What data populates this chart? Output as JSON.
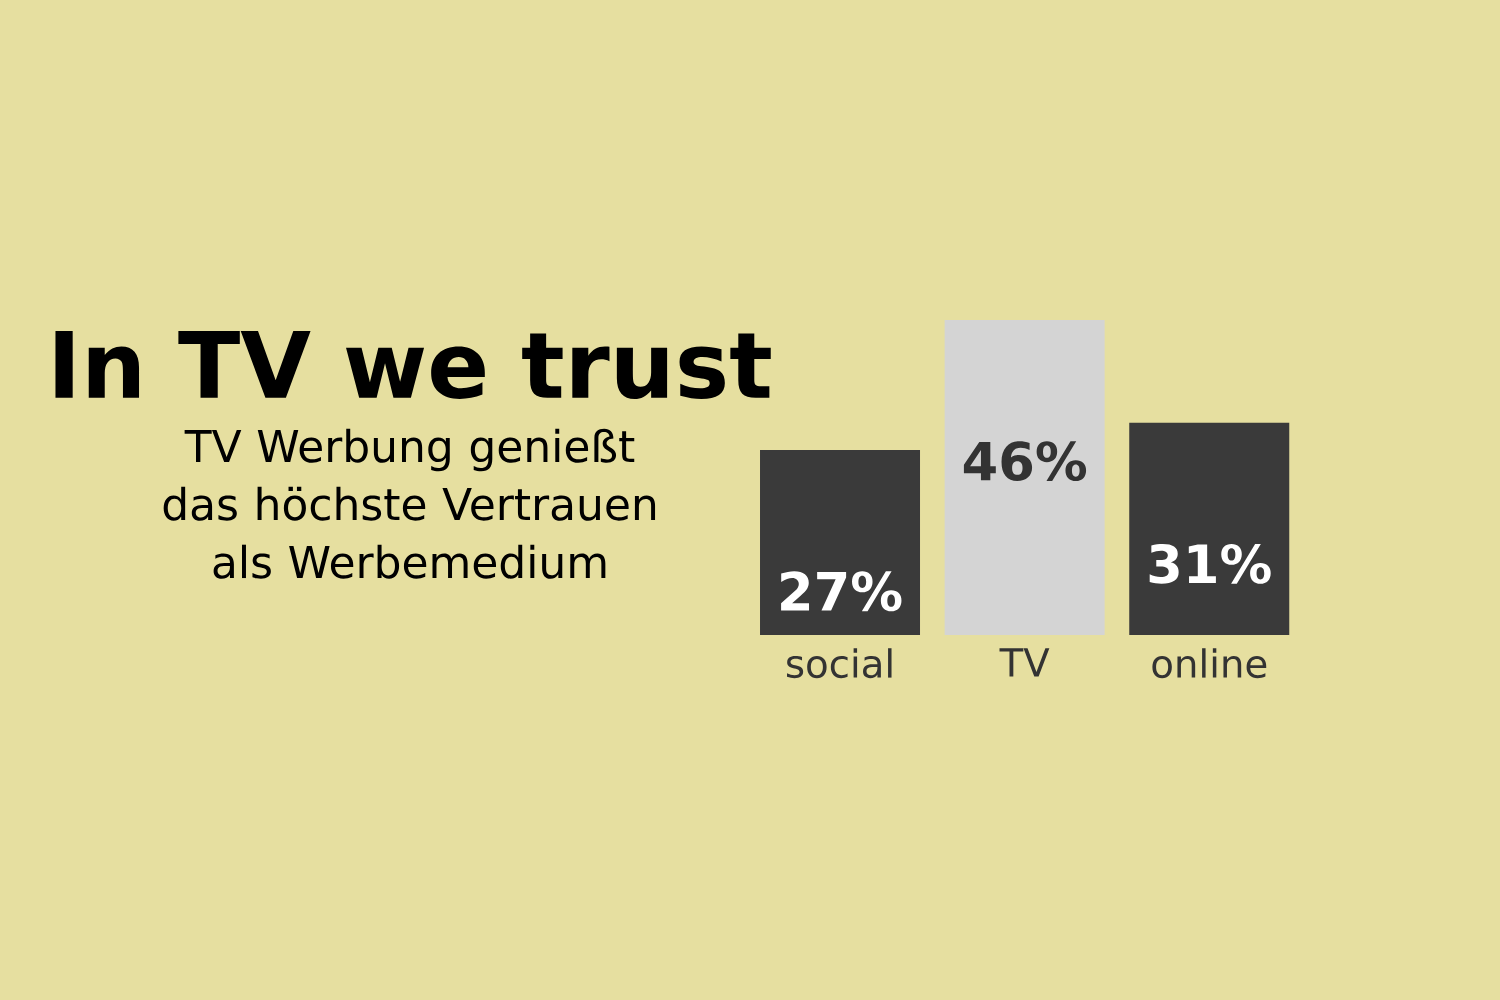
{
  "chart_data": {
    "type": "bar",
    "title": "In TV we trust",
    "subtitle": "TV Werbung genießt das höchste Vertrauen als Werbemedium",
    "categories": [
      "social",
      "TV",
      "online"
    ],
    "values": [
      27,
      46,
      31
    ],
    "colors": [
      "#3a3a3a",
      "#d4d4d4",
      "#3a3a3a"
    ],
    "value_labels": [
      "27%",
      "46%",
      "31%"
    ]
  }
}
